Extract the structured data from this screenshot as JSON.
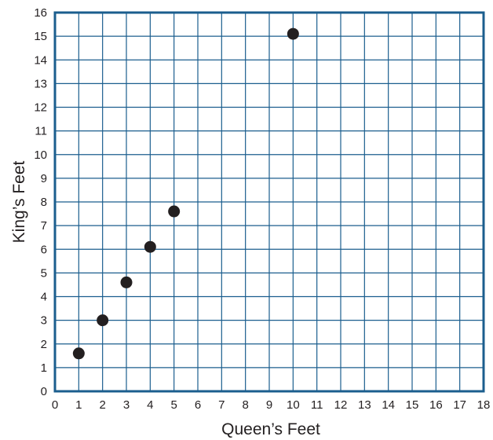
{
  "chart_data": {
    "type": "scatter",
    "title": "",
    "xlabel": "Queen’s Feet",
    "ylabel": "King’s Feet",
    "xlim": [
      0,
      18
    ],
    "ylim": [
      0,
      16
    ],
    "x_ticks": [
      "0",
      "1",
      "2",
      "3",
      "4",
      "5",
      "6",
      "7",
      "8",
      "9",
      "10",
      "11",
      "12",
      "13",
      "14",
      "15",
      "16",
      "17",
      "18"
    ],
    "y_ticks": [
      "0",
      "1",
      "2",
      "3",
      "4",
      "5",
      "6",
      "7",
      "8",
      "9",
      "10",
      "11",
      "12",
      "13",
      "14",
      "15",
      "16"
    ],
    "grid": true,
    "colors": {
      "grid": "#1b5e8e",
      "frame": "#1b5e8e",
      "point": "#231f20",
      "text": "#231f20"
    },
    "points": [
      {
        "x": 1,
        "y": 1.6
      },
      {
        "x": 2,
        "y": 3.0
      },
      {
        "x": 3,
        "y": 4.6
      },
      {
        "x": 4,
        "y": 6.1
      },
      {
        "x": 5,
        "y": 7.6
      },
      {
        "x": 10,
        "y": 15.1
      }
    ]
  }
}
